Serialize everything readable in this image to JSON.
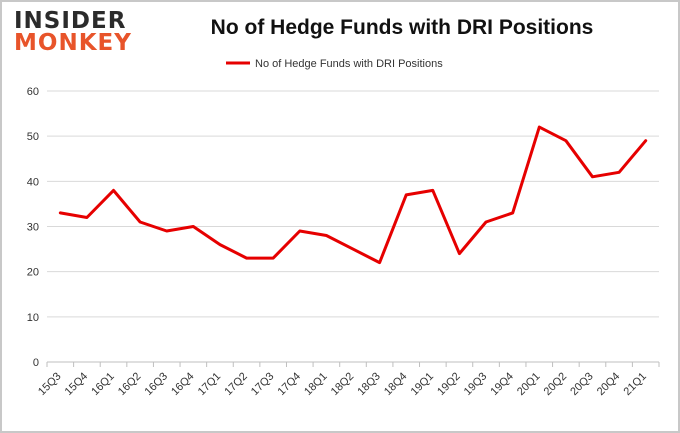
{
  "logo": {
    "line1": "INSIDER",
    "line2": "MONKEY"
  },
  "chart_data": {
    "type": "line",
    "title": "No of Hedge Funds with DRI Positions",
    "categories": [
      "15Q3",
      "15Q4",
      "16Q1",
      "16Q2",
      "16Q3",
      "16Q4",
      "17Q1",
      "17Q2",
      "17Q3",
      "17Q4",
      "18Q1",
      "18Q2",
      "18Q3",
      "18Q4",
      "19Q1",
      "19Q2",
      "19Q3",
      "19Q4",
      "20Q1",
      "20Q2",
      "20Q3",
      "20Q4",
      "21Q1"
    ],
    "series": [
      {
        "name": "No of Hedge Funds with DRI Positions",
        "color": "#e60000",
        "values": [
          33,
          32,
          38,
          31,
          29,
          30,
          26,
          23,
          23,
          29,
          28,
          25,
          22,
          37,
          38,
          24,
          31,
          33,
          52,
          49,
          41,
          42,
          49
        ]
      }
    ],
    "ylim": [
      0,
      60
    ],
    "yticks": [
      0,
      10,
      20,
      30,
      40,
      50,
      60
    ],
    "grid": true,
    "legend": "top-center"
  }
}
